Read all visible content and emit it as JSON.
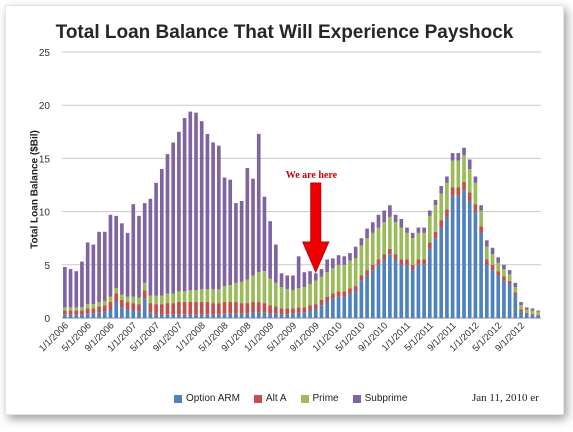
{
  "chart_data": {
    "type": "bar",
    "stacked": true,
    "title": "Total Loan Balance That Will Experience Payshock",
    "ylabel": "Total Loan Balance ($Bil)",
    "xlabel": "",
    "ylim": [
      0,
      25
    ],
    "yticks": [
      0,
      5,
      10,
      15,
      20,
      25
    ],
    "grid": true,
    "legend_position": "bottom",
    "x_tick_labels": [
      "1/1/2006",
      "5/1/2006",
      "9/1/2006",
      "1/1/2007",
      "5/1/2007",
      "9/1/2007",
      "1/1/2008",
      "5/1/2008",
      "9/1/2008",
      "1/1/2009",
      "5/1/2009",
      "9/1/2009",
      "1/1/2010",
      "5/1/2010",
      "9/1/2010",
      "1/1/2011",
      "5/1/2011",
      "9/1/2011",
      "1/1/2012",
      "5/1/2012",
      "9/1/2012"
    ],
    "categories": [
      "1/1/2006",
      "2/1/2006",
      "3/1/2006",
      "4/1/2006",
      "5/1/2006",
      "6/1/2006",
      "7/1/2006",
      "8/1/2006",
      "9/1/2006",
      "10/1/2006",
      "11/1/2006",
      "12/1/2006",
      "1/1/2007",
      "2/1/2007",
      "3/1/2007",
      "4/1/2007",
      "5/1/2007",
      "6/1/2007",
      "7/1/2007",
      "8/1/2007",
      "9/1/2007",
      "10/1/2007",
      "11/1/2007",
      "12/1/2007",
      "1/1/2008",
      "2/1/2008",
      "3/1/2008",
      "4/1/2008",
      "5/1/2008",
      "6/1/2008",
      "7/1/2008",
      "8/1/2008",
      "9/1/2008",
      "10/1/2008",
      "11/1/2008",
      "12/1/2008",
      "1/1/2009",
      "2/1/2009",
      "3/1/2009",
      "4/1/2009",
      "5/1/2009",
      "6/1/2009",
      "7/1/2009",
      "8/1/2009",
      "9/1/2009",
      "10/1/2009",
      "11/1/2009",
      "12/1/2009",
      "1/1/2010",
      "2/1/2010",
      "3/1/2010",
      "4/1/2010",
      "5/1/2010",
      "6/1/2010",
      "7/1/2010",
      "8/1/2010",
      "9/1/2010",
      "10/1/2010",
      "11/1/2010",
      "12/1/2010",
      "1/1/2011",
      "2/1/2011",
      "3/1/2011",
      "4/1/2011",
      "5/1/2011",
      "6/1/2011",
      "7/1/2011",
      "8/1/2011",
      "9/1/2011",
      "10/1/2011",
      "11/1/2011",
      "12/1/2011",
      "1/1/2012",
      "2/1/2012",
      "3/1/2012",
      "4/1/2012",
      "5/1/2012",
      "6/1/2012",
      "7/1/2012",
      "8/1/2012",
      "9/1/2012",
      "10/1/2012",
      "11/1/2012",
      "12/1/2012"
    ],
    "series": [
      {
        "name": "Option ARM",
        "color": "#4f81bd",
        "values": [
          0.3,
          0.3,
          0.3,
          0.3,
          0.4,
          0.4,
          0.5,
          0.6,
          0.8,
          1.5,
          1.0,
          0.8,
          0.7,
          0.6,
          1.8,
          0.5,
          0.3,
          0.3,
          0.3,
          0.3,
          0.3,
          0.3,
          0.3,
          0.3,
          0.3,
          0.3,
          0.3,
          0.3,
          0.4,
          0.4,
          0.4,
          0.4,
          0.4,
          0.5,
          0.5,
          0.5,
          0.4,
          0.4,
          0.3,
          0.3,
          0.4,
          0.5,
          0.5,
          0.7,
          0.8,
          1.2,
          1.5,
          1.8,
          2.0,
          2.0,
          2.3,
          2.5,
          3.5,
          4.0,
          4.5,
          5.0,
          5.5,
          6.0,
          5.5,
          5.0,
          5.0,
          4.5,
          5.0,
          5.0,
          6.5,
          7.5,
          8.5,
          9.5,
          11.5,
          11.5,
          12.0,
          11.0,
          10.0,
          8.0,
          5.0,
          4.5,
          4.0,
          3.5,
          3.2,
          2.2,
          0.6,
          0.4,
          0.3,
          0.2
        ]
      },
      {
        "name": "Alt A",
        "color": "#c0504d",
        "values": [
          0.4,
          0.4,
          0.4,
          0.4,
          0.5,
          0.5,
          0.6,
          0.6,
          0.7,
          0.8,
          0.7,
          0.7,
          0.7,
          0.7,
          0.8,
          0.9,
          1.0,
          1.0,
          1.1,
          1.1,
          1.2,
          1.2,
          1.2,
          1.2,
          1.2,
          1.2,
          1.1,
          1.1,
          1.1,
          1.1,
          1.1,
          1.0,
          1.0,
          1.0,
          1.0,
          0.9,
          0.8,
          0.7,
          0.6,
          0.6,
          0.5,
          0.5,
          0.5,
          0.5,
          0.5,
          0.5,
          0.5,
          0.5,
          0.5,
          0.5,
          0.5,
          0.5,
          0.5,
          0.5,
          0.5,
          0.5,
          0.5,
          0.5,
          0.5,
          0.5,
          0.5,
          0.5,
          0.5,
          0.5,
          0.6,
          0.6,
          0.7,
          0.7,
          0.8,
          0.8,
          0.8,
          0.8,
          0.7,
          0.6,
          0.5,
          0.5,
          0.4,
          0.4,
          0.3,
          0.2,
          0.2,
          0.1,
          0.1,
          0.1
        ]
      },
      {
        "name": "Prime",
        "color": "#9bbb59",
        "values": [
          0.3,
          0.3,
          0.3,
          0.3,
          0.4,
          0.4,
          0.4,
          0.4,
          0.5,
          0.5,
          0.5,
          0.5,
          0.6,
          0.6,
          0.7,
          0.7,
          0.8,
          0.8,
          0.9,
          0.9,
          1.0,
          1.0,
          1.1,
          1.1,
          1.2,
          1.2,
          1.3,
          1.3,
          1.5,
          1.6,
          1.8,
          2.0,
          2.2,
          2.5,
          2.8,
          3.0,
          2.5,
          2.2,
          2.0,
          1.8,
          1.7,
          1.8,
          1.9,
          2.0,
          2.2,
          2.2,
          2.3,
          2.4,
          2.5,
          2.5,
          2.6,
          2.6,
          2.8,
          3.0,
          3.0,
          3.0,
          3.0,
          3.0,
          3.0,
          3.0,
          2.5,
          2.5,
          2.5,
          2.5,
          2.5,
          2.5,
          2.5,
          2.5,
          2.5,
          2.5,
          2.5,
          2.2,
          2.0,
          1.5,
          1.2,
          1.0,
          0.8,
          0.7,
          0.6,
          0.5,
          0.4,
          0.3,
          0.3,
          0.3
        ]
      },
      {
        "name": "Subprime",
        "color": "#8064a2",
        "values": [
          3.8,
          3.6,
          3.4,
          4.3,
          5.8,
          5.6,
          6.6,
          6.5,
          7.7,
          6.8,
          6.7,
          6.0,
          8.7,
          7.7,
          7.5,
          9.1,
          10.6,
          11.9,
          13.1,
          14.2,
          15.0,
          16.3,
          16.8,
          16.7,
          15.8,
          14.6,
          13.8,
          13.5,
          10.2,
          9.9,
          7.5,
          7.6,
          10.5,
          9.1,
          13.0,
          7.0,
          5.4,
          3.6,
          1.3,
          1.3,
          1.4,
          3.0,
          1.4,
          1.2,
          0.7,
          0.7,
          1.2,
          0.9,
          0.9,
          0.8,
          0.7,
          1.1,
          0.7,
          0.9,
          1.0,
          1.2,
          1.1,
          1.1,
          0.7,
          0.8,
          0.5,
          0.5,
          0.5,
          0.5,
          0.5,
          0.5,
          0.7,
          0.6,
          0.7,
          0.7,
          0.7,
          0.9,
          0.6,
          0.5,
          0.6,
          0.6,
          0.5,
          0.4,
          0.4,
          0.4,
          0.3,
          0.2,
          0.2,
          0.1
        ]
      }
    ],
    "annotation": {
      "text": "We are here",
      "category": "9/1/2009"
    },
    "credit": "Jan 11, 2010 er"
  }
}
